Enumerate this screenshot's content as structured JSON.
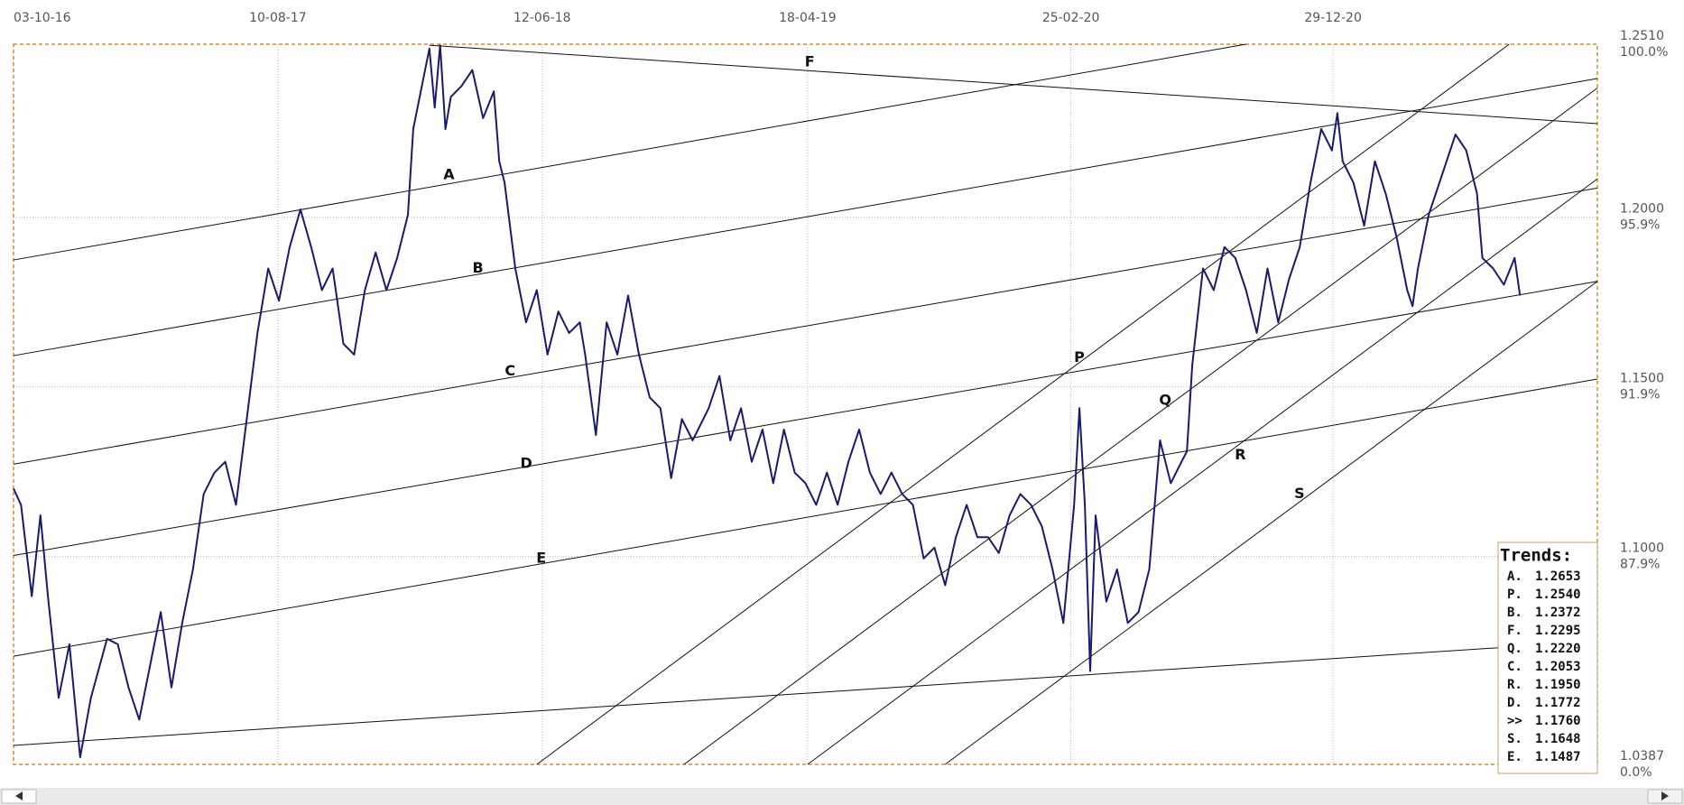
{
  "chart_data": {
    "type": "line",
    "xlim": [
      0,
      1474
    ],
    "xticks": [
      {
        "value": 0,
        "label": "03-10-16"
      },
      {
        "value": 246,
        "label": "10-08-17"
      },
      {
        "value": 492,
        "label": "12-06-18"
      },
      {
        "value": 739,
        "label": "18-04-19"
      },
      {
        "value": 984,
        "label": "25-02-20"
      },
      {
        "value": 1228,
        "label": "29-12-20"
      }
    ],
    "ylim": [
      1.0387,
      1.251
    ],
    "yticks": [
      {
        "value": 1.251,
        "label": "1.2510"
      },
      {
        "value": 1.2,
        "label": "1.2000"
      },
      {
        "value": 1.15,
        "label": "1.1500"
      },
      {
        "value": 1.1,
        "label": "1.1000"
      },
      {
        "value": 1.0387,
        "label": "1.0387"
      }
    ],
    "y_percent_labels": [
      "100.0%",
      "95.9%",
      "91.9%",
      "87.9%",
      "0.0%"
    ],
    "grid": true,
    "color": "#1a1a6e",
    "x": [
      0,
      7,
      17,
      25,
      32,
      42,
      52,
      62,
      72,
      87,
      97,
      107,
      117,
      127,
      137,
      147,
      157,
      167,
      177,
      187,
      197,
      207,
      217,
      227,
      237,
      247,
      257,
      267,
      277,
      287,
      297,
      307,
      317,
      327,
      337,
      347,
      357,
      367,
      372,
      382,
      387,
      392,
      397,
      402,
      407,
      417,
      427,
      437,
      447,
      452,
      457,
      467,
      477,
      487,
      497,
      507,
      517,
      527,
      532,
      542,
      552,
      562,
      572,
      582,
      592,
      602,
      612,
      622,
      632,
      647,
      657,
      667,
      677,
      687,
      697,
      707,
      717,
      727,
      737,
      747,
      757,
      767,
      777,
      787,
      797,
      807,
      817,
      827,
      837,
      847,
      857,
      867,
      877,
      887,
      897,
      907,
      917,
      927,
      937,
      947,
      957,
      967,
      977,
      987,
      992,
      997,
      1002,
      1007,
      1017,
      1027,
      1037,
      1047,
      1057,
      1067,
      1077,
      1087,
      1092,
      1097,
      1107,
      1117,
      1127,
      1137,
      1147,
      1157,
      1167,
      1177,
      1187,
      1197,
      1207,
      1217,
      1227,
      1232,
      1237,
      1247,
      1257,
      1267,
      1277,
      1287,
      1297,
      1302,
      1307,
      1317,
      1327,
      1337,
      1342,
      1352,
      1362,
      1367,
      1377,
      1387,
      1397,
      1402
    ],
    "values": [
      1.12,
      1.1152,
      1.0883,
      1.1121,
      1.0883,
      1.0583,
      1.0741,
      1.0408,
      1.0583,
      1.0757,
      1.0741,
      1.0614,
      1.0519,
      1.0677,
      1.0836,
      1.0614,
      1.0804,
      1.0962,
      1.1184,
      1.1247,
      1.1279,
      1.1152,
      1.1405,
      1.1659,
      1.1849,
      1.1754,
      1.1912,
      1.2023,
      1.1912,
      1.1785,
      1.1849,
      1.1627,
      1.1595,
      1.1785,
      1.1896,
      1.1785,
      1.188,
      1.2007,
      1.226,
      1.2418,
      1.2497,
      1.2323,
      1.2507,
      1.226,
      1.2355,
      1.2387,
      1.2434,
      1.2292,
      1.2371,
      1.2165,
      1.2102,
      1.1849,
      1.169,
      1.1785,
      1.1595,
      1.1722,
      1.1659,
      1.169,
      1.1595,
      1.1358,
      1.169,
      1.1595,
      1.1769,
      1.1595,
      1.1469,
      1.1437,
      1.1231,
      1.1405,
      1.1342,
      1.1437,
      1.1532,
      1.1342,
      1.1437,
      1.1279,
      1.1374,
      1.1216,
      1.1374,
      1.1247,
      1.1216,
      1.1152,
      1.1247,
      1.1152,
      1.1279,
      1.1374,
      1.1247,
      1.1184,
      1.1247,
      1.1184,
      1.1152,
      1.0994,
      1.1026,
      1.0915,
      1.1057,
      1.1152,
      1.1057,
      1.1057,
      1.101,
      1.1121,
      1.1184,
      1.1152,
      1.1089,
      1.0962,
      1.0804,
      1.1152,
      1.1437,
      1.1152,
      1.0662,
      1.1121,
      1.0867,
      1.0962,
      1.0804,
      1.0836,
      1.0962,
      1.1342,
      1.1216,
      1.1279,
      1.131,
      1.1564,
      1.1849,
      1.1785,
      1.1912,
      1.188,
      1.1785,
      1.1659,
      1.1849,
      1.169,
      1.1817,
      1.1912,
      1.2102,
      1.226,
      1.2197,
      1.2307,
      1.2165,
      1.2102,
      1.1975,
      1.2165,
      1.207,
      1.1943,
      1.1785,
      1.1738,
      1.1849,
      1.2007,
      1.2102,
      1.2197,
      1.2244,
      1.2197,
      1.207,
      1.188,
      1.1849,
      1.1801,
      1.188,
      1.1769
    ],
    "trendlines": [
      {
        "name": "A",
        "x": [
          0,
          1147
        ],
        "y": [
          1.1874,
          1.251
        ]
      },
      {
        "name": "B",
        "x": [
          0,
          1474
        ],
        "y": [
          1.1592,
          1.2409
        ]
      },
      {
        "name": "C",
        "x": [
          0,
          1474
        ],
        "y": [
          1.1272,
          1.2086
        ]
      },
      {
        "name": "D",
        "x": [
          0,
          1474
        ],
        "y": [
          1.1003,
          1.1811
        ]
      },
      {
        "name": "E",
        "x": [
          0,
          1474
        ],
        "y": [
          1.0706,
          1.1523
        ]
      },
      {
        "name": "F",
        "x": [
          387,
          1474
        ],
        "y": [
          1.2507,
          1.2276
        ]
      },
      {
        "name": "P",
        "x": [
          487,
          1392
        ],
        "y": [
          1.0387,
          1.251
        ]
      },
      {
        "name": "Q",
        "x": [
          624,
          1474
        ],
        "y": [
          1.0387,
          1.2381
        ]
      },
      {
        "name": "R",
        "x": [
          739,
          1474
        ],
        "y": [
          1.0387,
          1.2113
        ]
      },
      {
        "name": "S",
        "x": [
          867,
          1474
        ],
        "y": [
          1.0387,
          1.1811
        ]
      },
      {
        "x": [
          0,
          1382
        ],
        "y": [
          1.0443,
          1.0731
        ]
      }
    ],
    "legend": {
      "title": "Trends:",
      "items": [
        {
          "label": "A.",
          "value": "1.2653"
        },
        {
          "label": "P.",
          "value": "1.2540"
        },
        {
          "label": "B.",
          "value": "1.2372"
        },
        {
          "label": "F.",
          "value": "1.2295"
        },
        {
          "label": "Q.",
          "value": "1.2220"
        },
        {
          "label": "C.",
          "value": "1.2053"
        },
        {
          "label": "R.",
          "value": "1.1950"
        },
        {
          "label": "D.",
          "value": "1.1772"
        },
        {
          "label": ">>",
          "value": "1.1760"
        },
        {
          "label": "S.",
          "value": "1.1648"
        },
        {
          "label": "E.",
          "value": "1.1487"
        }
      ]
    }
  }
}
